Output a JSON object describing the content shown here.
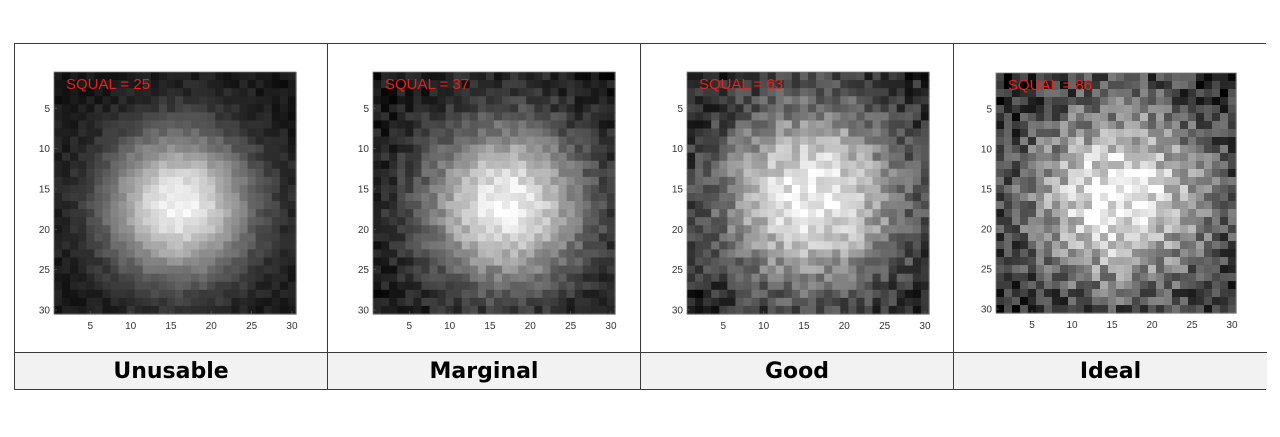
{
  "chart_data": [
    {
      "type": "heatmap",
      "annotation": "SQUAL = 25",
      "squal": 25,
      "category": "Unusable",
      "xticks": [
        5,
        10,
        15,
        20,
        25,
        30
      ],
      "yticks": [
        5,
        10,
        15,
        20,
        25,
        30
      ],
      "xlim": [
        0.5,
        30.5
      ],
      "ylim": [
        0.5,
        30.5
      ],
      "grid_size": 30,
      "colormap": "gray",
      "spot_center": [
        16,
        17
      ],
      "spot_sigma": 6.5,
      "noise": 0.05
    },
    {
      "type": "heatmap",
      "annotation": "SQUAL = 37",
      "squal": 37,
      "category": "Marginal",
      "xticks": [
        5,
        10,
        15,
        20,
        25,
        30
      ],
      "yticks": [
        5,
        10,
        15,
        20,
        25,
        30
      ],
      "xlim": [
        0.5,
        30.5
      ],
      "ylim": [
        0.5,
        30.5
      ],
      "grid_size": 30,
      "colormap": "gray",
      "spot_center": [
        17,
        17
      ],
      "spot_sigma": 7.2,
      "noise": 0.09
    },
    {
      "type": "heatmap",
      "annotation": "SQUAL = 63",
      "squal": 63,
      "category": "Good",
      "xticks": [
        5,
        10,
        15,
        20,
        25,
        30
      ],
      "yticks": [
        5,
        10,
        15,
        20,
        25,
        30
      ],
      "xlim": [
        0.5,
        30.5
      ],
      "ylim": [
        0.5,
        30.5
      ],
      "grid_size": 30,
      "colormap": "gray",
      "spot_center": [
        16,
        16
      ],
      "spot_sigma": 8.5,
      "noise": 0.14
    },
    {
      "type": "heatmap",
      "annotation": "SQUAL = 86",
      "squal": 86,
      "category": "Ideal",
      "xticks": [
        5,
        10,
        15,
        20,
        25,
        30
      ],
      "yticks": [
        5,
        10,
        15,
        20,
        25,
        30
      ],
      "xlim": [
        0.5,
        30.5
      ],
      "ylim": [
        0.5,
        30.5
      ],
      "grid_size": 30,
      "colormap": "gray",
      "spot_center": [
        16,
        16
      ],
      "spot_sigma": 8.8,
      "noise": 0.2
    }
  ],
  "colors": {
    "annotation": "#e8201d",
    "border": "#3a3a3a",
    "label_background": "#f2f2f2"
  }
}
